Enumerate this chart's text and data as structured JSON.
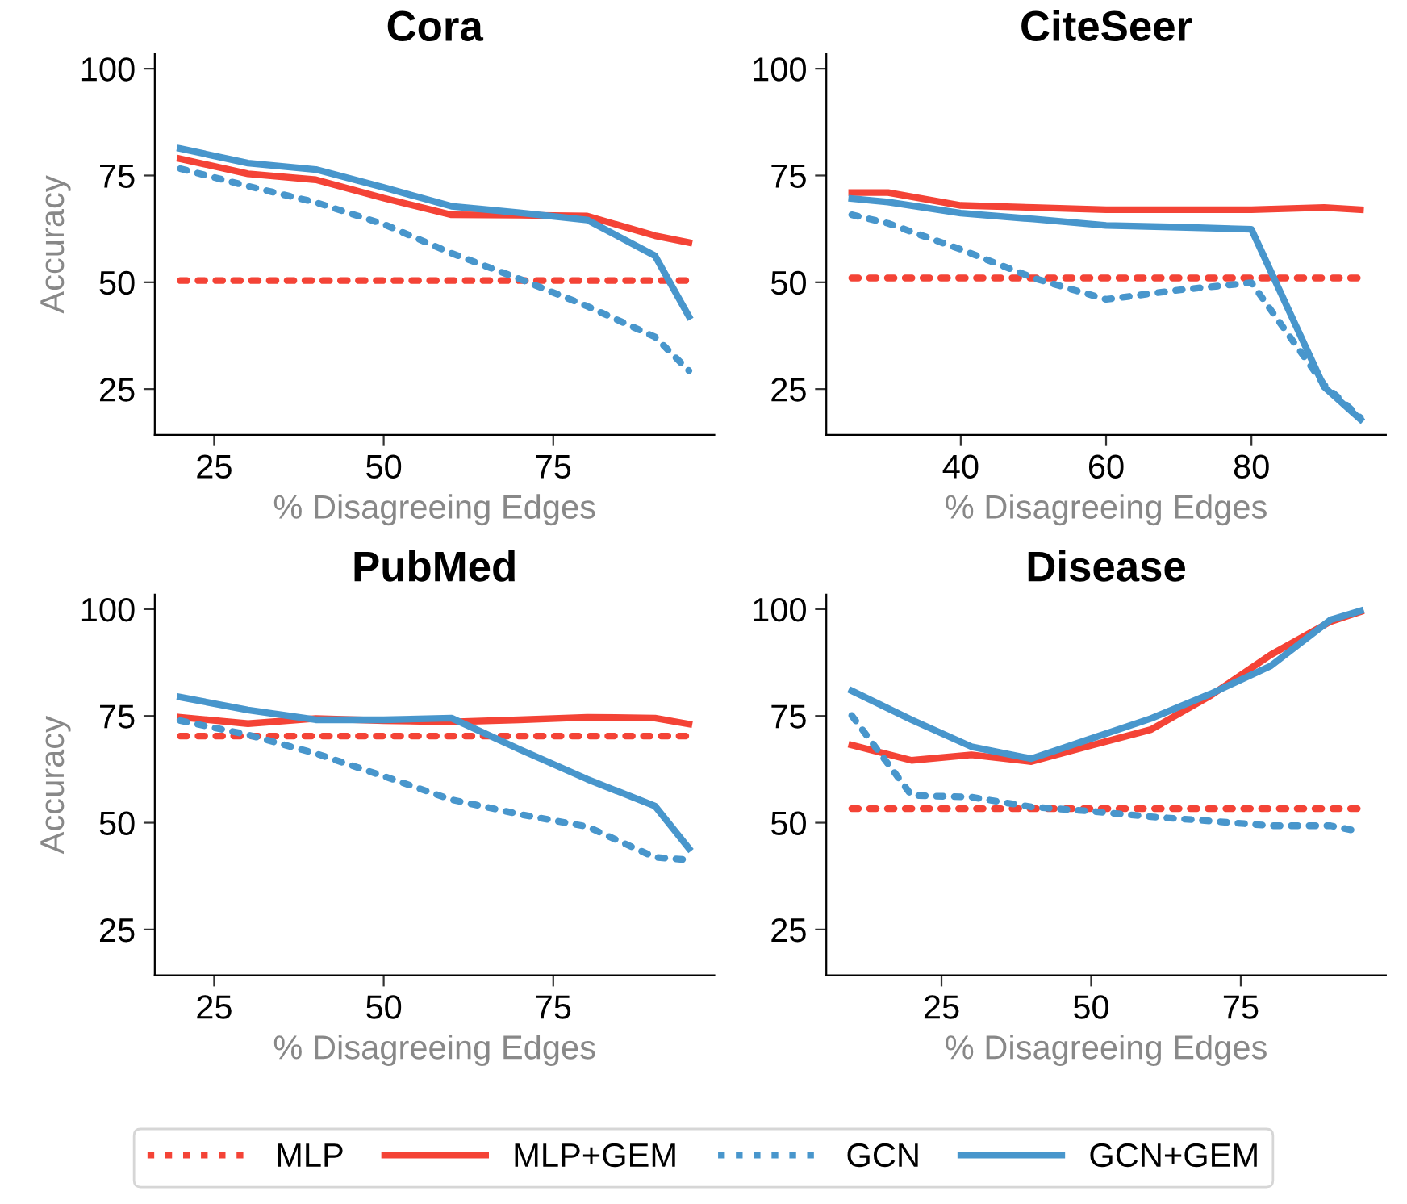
{
  "chart_data": [
    {
      "type": "line",
      "title": "Cora",
      "xlabel": "% Disagreeing Edges",
      "ylabel": "Accuracy",
      "x": [
        20,
        30,
        40,
        50,
        60,
        70,
        80,
        90,
        95
      ],
      "xlim": [
        16.25,
        98.75
      ],
      "xticks": [
        25,
        50,
        75
      ],
      "ylim": [
        14.3,
        103.4
      ],
      "yticks": [
        25,
        50,
        75,
        100
      ],
      "grid": false,
      "legend": "bottom",
      "series": [
        {
          "name": "MLP",
          "color": "#f44336",
          "line_style": "dotted",
          "x": [
            20,
            95
          ],
          "values": [
            50.4,
            50.4
          ]
        },
        {
          "name": "MLP+GEM",
          "color": "#f44336",
          "line_style": "solid",
          "values": [
            78.9,
            75.4,
            74,
            69.7,
            65.8,
            65.7,
            65.5,
            60.9,
            59.3
          ]
        },
        {
          "name": "GCN",
          "color": "#4896cc",
          "line_style": "dotted",
          "values": [
            76.6,
            72.5,
            68.7,
            63.6,
            56.8,
            50.8,
            44.4,
            37.2,
            29.3
          ]
        },
        {
          "name": "GCN+GEM",
          "color": "#4896cc",
          "line_style": "solid",
          "values": [
            81.3,
            77.9,
            76.4,
            72.2,
            67.8,
            66.3,
            64.6,
            56.2,
            42
          ]
        }
      ]
    },
    {
      "type": "line",
      "title": "CiteSeer",
      "xlabel": "% Disagreeing Edges",
      "x": [
        25,
        30,
        40,
        50,
        60,
        70,
        80,
        90,
        95
      ],
      "xlim": [
        21.5,
        98.5
      ],
      "xticks": [
        40,
        60,
        80
      ],
      "ylim": [
        14.3,
        103.4
      ],
      "yticks": [
        25,
        50,
        75,
        100
      ],
      "grid": false,
      "series": [
        {
          "color": "#f44336",
          "line_style": "dotted",
          "x": [
            25,
            95
          ],
          "values": [
            51,
            51
          ]
        },
        {
          "color": "#f44336",
          "line_style": "solid",
          "values": [
            71,
            71,
            68,
            67.5,
            67,
            67,
            67,
            67.5,
            67
          ]
        },
        {
          "color": "#4896cc",
          "line_style": "dotted",
          "values": [
            65.8,
            63.8,
            57.7,
            51,
            46,
            48.2,
            49.9,
            26,
            18.3
          ]
        },
        {
          "color": "#4896cc",
          "line_style": "solid",
          "values": [
            69.6,
            68.8,
            66.2,
            64.8,
            63.3,
            62.9,
            62.4,
            25.5,
            17.9
          ]
        }
      ]
    },
    {
      "type": "line",
      "title": "PubMed",
      "xlabel": "% Disagreeing Edges",
      "ylabel": "Accuracy",
      "x": [
        20,
        30,
        40,
        50,
        60,
        70,
        80,
        90,
        95
      ],
      "xlim": [
        16.25,
        98.75
      ],
      "xticks": [
        25,
        50,
        75
      ],
      "ylim": [
        14.3,
        103.4
      ],
      "yticks": [
        25,
        50,
        75,
        100
      ],
      "grid": false,
      "series": [
        {
          "color": "#f44336",
          "line_style": "dotted",
          "x": [
            20,
            95
          ],
          "values": [
            70.3,
            70.3
          ]
        },
        {
          "color": "#f44336",
          "line_style": "solid",
          "values": [
            74.7,
            73.2,
            74.4,
            73.9,
            73.6,
            74.1,
            74.7,
            74.5,
            73.1
          ]
        },
        {
          "color": "#4896cc",
          "line_style": "dotted",
          "values": [
            73.9,
            70.6,
            66.2,
            60.9,
            55.4,
            52,
            49.1,
            41.9,
            41.3
          ]
        },
        {
          "color": "#4896cc",
          "line_style": "solid",
          "values": [
            79.4,
            76.4,
            74.1,
            74.1,
            74.5,
            67.2,
            60.2,
            53.9,
            44
          ]
        }
      ]
    },
    {
      "type": "line",
      "title": "Disease",
      "xlabel": "% Disagreeing Edges",
      "x": [
        10,
        20,
        30,
        40,
        50,
        60,
        70,
        80,
        90,
        95
      ],
      "xlim": [
        5.75,
        99.25
      ],
      "xticks": [
        25,
        50,
        75
      ],
      "ylim": [
        14.3,
        103.4
      ],
      "yticks": [
        25,
        50,
        75,
        100
      ],
      "grid": false,
      "series": [
        {
          "color": "#f44336",
          "line_style": "dotted",
          "x": [
            10,
            95
          ],
          "values": [
            53.3,
            53.3
          ]
        },
        {
          "color": "#f44336",
          "line_style": "solid",
          "values": [
            68.2,
            64.6,
            65.9,
            64.3,
            68.1,
            71.8,
            79.8,
            89.3,
            97.1,
            99.4
          ]
        },
        {
          "color": "#4896cc",
          "line_style": "dotted",
          "values": [
            75.1,
            56.4,
            56,
            53.7,
            52.7,
            51.4,
            50.4,
            49.3,
            49.3,
            47.9
          ]
        },
        {
          "color": "#4896cc",
          "line_style": "solid",
          "values": [
            80.9,
            74.1,
            67.8,
            65,
            69.7,
            74.4,
            80.2,
            86.7,
            97.5,
            99.6
          ]
        }
      ]
    }
  ]
}
